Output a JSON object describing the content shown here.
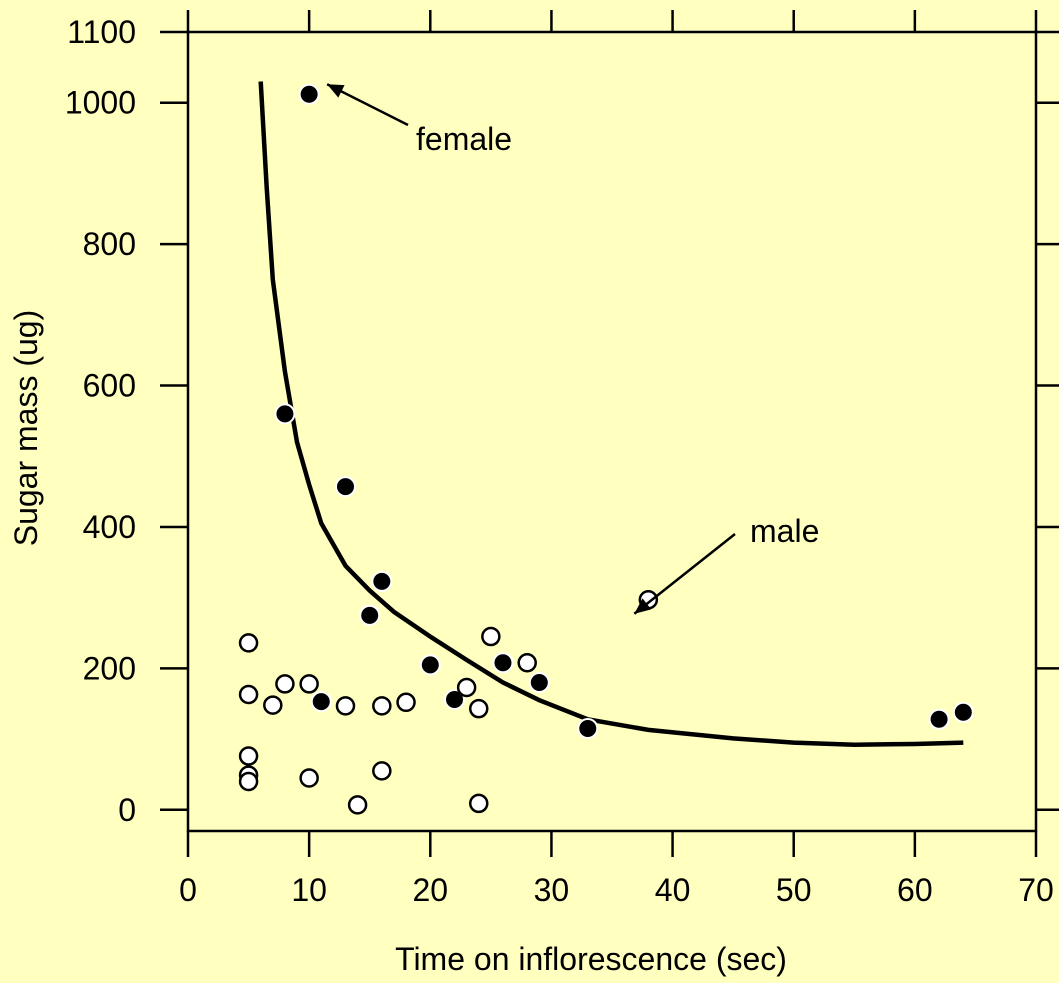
{
  "chart_data": {
    "type": "scatter",
    "title": "",
    "xlabel": "Time on inflorescence (sec)",
    "ylabel": "Sugar mass (ug)",
    "xlim": [
      0,
      70
    ],
    "ylim": [
      -30,
      1100
    ],
    "xticks": [
      0,
      10,
      20,
      30,
      40,
      50,
      60,
      70
    ],
    "xtick_labels": [
      "0",
      "10",
      "20",
      "30",
      "40",
      "50",
      "60",
      "70"
    ],
    "yticks": [
      0,
      200,
      400,
      600,
      800,
      1000,
      1100
    ],
    "ytick_labels": [
      "0",
      "200",
      "400",
      "600",
      "800",
      "1000",
      "1100"
    ],
    "grid": false,
    "background_color": "#FFFFC0",
    "series": [
      {
        "marker": "filled-circle",
        "points": [
          {
            "x": 10,
            "y": 1012
          },
          {
            "x": 8,
            "y": 560
          },
          {
            "x": 13,
            "y": 457
          },
          {
            "x": 16,
            "y": 323
          },
          {
            "x": 15,
            "y": 275
          },
          {
            "x": 20,
            "y": 205
          },
          {
            "x": 26,
            "y": 208
          },
          {
            "x": 29,
            "y": 180
          },
          {
            "x": 11,
            "y": 153
          },
          {
            "x": 22,
            "y": 156
          },
          {
            "x": 33,
            "y": 115
          },
          {
            "x": 62,
            "y": 128
          },
          {
            "x": 64,
            "y": 138
          }
        ]
      },
      {
        "marker": "open-circle",
        "points": [
          {
            "x": 5,
            "y": 236
          },
          {
            "x": 5,
            "y": 163
          },
          {
            "x": 5,
            "y": 76
          },
          {
            "x": 5,
            "y": 49
          },
          {
            "x": 5,
            "y": 40
          },
          {
            "x": 7,
            "y": 148
          },
          {
            "x": 8,
            "y": 178
          },
          {
            "x": 10,
            "y": 178
          },
          {
            "x": 10,
            "y": 45
          },
          {
            "x": 13,
            "y": 147
          },
          {
            "x": 14,
            "y": 7
          },
          {
            "x": 16,
            "y": 147
          },
          {
            "x": 16,
            "y": 55
          },
          {
            "x": 18,
            "y": 152
          },
          {
            "x": 23,
            "y": 173
          },
          {
            "x": 24,
            "y": 143
          },
          {
            "x": 24,
            "y": 9
          },
          {
            "x": 25,
            "y": 245
          },
          {
            "x": 28,
            "y": 208
          },
          {
            "x": 38,
            "y": 297
          }
        ]
      }
    ],
    "fit_curve": {
      "style": "solid-black",
      "points": [
        [
          6,
          1030
        ],
        [
          6.5,
          880
        ],
        [
          7,
          750
        ],
        [
          8,
          620
        ],
        [
          9,
          520
        ],
        [
          10,
          460
        ],
        [
          11,
          405
        ],
        [
          13,
          345
        ],
        [
          15,
          310
        ],
        [
          17,
          280
        ],
        [
          20,
          245
        ],
        [
          23,
          212
        ],
        [
          26,
          180
        ],
        [
          29,
          155
        ],
        [
          33,
          128
        ],
        [
          38,
          113
        ],
        [
          45,
          101
        ],
        [
          50,
          95
        ],
        [
          55,
          92
        ],
        [
          60,
          93
        ],
        [
          64,
          95
        ]
      ]
    },
    "annotations": [
      {
        "text": "female",
        "points_to": {
          "x": 10,
          "y": 1012
        }
      },
      {
        "text": "male",
        "points_to": {
          "x": 38,
          "y": 297
        }
      }
    ]
  }
}
